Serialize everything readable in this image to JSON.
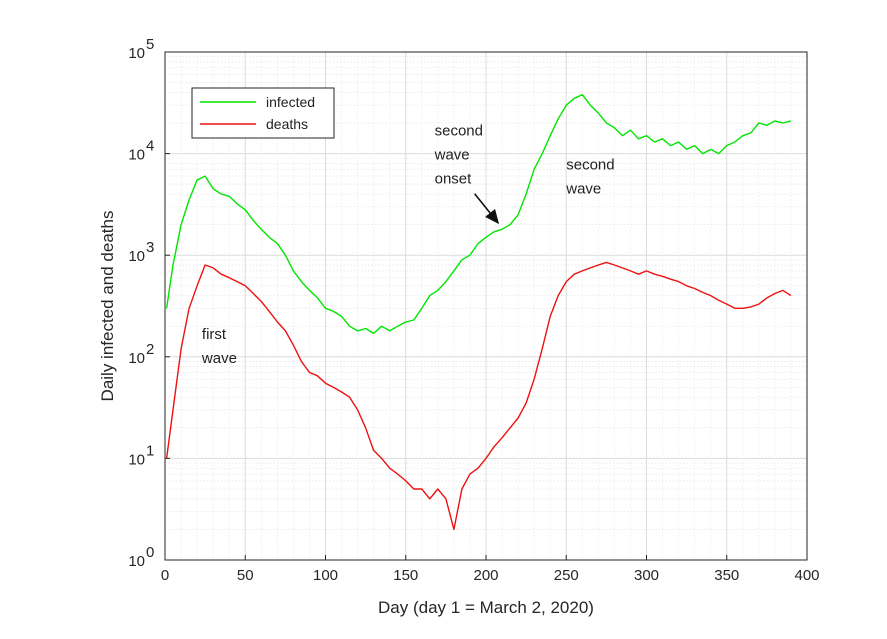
{
  "chart_data": {
    "type": "line",
    "title": "",
    "xlabel": "Day (day 1 = March 2, 2020)",
    "ylabel": "Daily infected and deaths",
    "xlim": [
      0,
      400
    ],
    "ylim": [
      1,
      100000
    ],
    "yscale": "log",
    "grid": true,
    "legend_position": "top-left",
    "x_ticks": [
      "0",
      "50",
      "100",
      "150",
      "200",
      "250",
      "300",
      "350",
      "400"
    ],
    "y_ticks": [
      {
        "base": "10",
        "exp": "0"
      },
      {
        "base": "10",
        "exp": "1"
      },
      {
        "base": "10",
        "exp": "2"
      },
      {
        "base": "10",
        "exp": "3"
      },
      {
        "base": "10",
        "exp": "4"
      },
      {
        "base": "10",
        "exp": "5"
      }
    ],
    "series": [
      {
        "name": "infected",
        "color": "#00e600",
        "x": [
          1,
          5,
          10,
          15,
          20,
          25,
          30,
          35,
          40,
          45,
          50,
          55,
          60,
          65,
          70,
          75,
          80,
          85,
          90,
          95,
          100,
          105,
          110,
          115,
          120,
          125,
          130,
          135,
          140,
          145,
          150,
          155,
          160,
          165,
          170,
          175,
          180,
          185,
          190,
          195,
          200,
          205,
          210,
          215,
          220,
          225,
          230,
          235,
          240,
          245,
          250,
          255,
          260,
          265,
          270,
          275,
          280,
          285,
          290,
          295,
          300,
          305,
          310,
          315,
          320,
          325,
          330,
          335,
          340,
          345,
          350,
          355,
          360,
          365,
          370,
          375,
          380,
          385,
          390
        ],
        "values": [
          300,
          800,
          2000,
          3500,
          5500,
          6000,
          4500,
          4000,
          3800,
          3200,
          2800,
          2200,
          1800,
          1500,
          1300,
          1000,
          700,
          550,
          450,
          380,
          300,
          280,
          250,
          200,
          180,
          190,
          170,
          200,
          180,
          200,
          220,
          230,
          300,
          400,
          450,
          550,
          700,
          900,
          1000,
          1300,
          1500,
          1700,
          1800,
          2000,
          2500,
          4000,
          7000,
          10000,
          15000,
          22000,
          30000,
          35000,
          38000,
          30000,
          25000,
          20000,
          18000,
          15000,
          17000,
          14000,
          15000,
          13000,
          14000,
          12000,
          13000,
          11000,
          12000,
          10000,
          11000,
          10000,
          12000,
          13000,
          15000,
          16000,
          20000,
          19000,
          21000,
          20000,
          21000
        ]
      },
      {
        "name": "deaths",
        "color": "#ee1111",
        "x": [
          1,
          5,
          10,
          15,
          20,
          25,
          30,
          35,
          40,
          45,
          50,
          55,
          60,
          65,
          70,
          75,
          80,
          85,
          90,
          95,
          100,
          105,
          110,
          115,
          120,
          125,
          130,
          135,
          140,
          145,
          150,
          155,
          160,
          165,
          170,
          175,
          180,
          185,
          190,
          195,
          200,
          205,
          210,
          215,
          220,
          225,
          230,
          235,
          240,
          245,
          250,
          255,
          260,
          265,
          270,
          275,
          280,
          285,
          290,
          295,
          300,
          305,
          310,
          315,
          320,
          325,
          330,
          335,
          340,
          345,
          350,
          355,
          360,
          365,
          370,
          375,
          380,
          385,
          390
        ],
        "values": [
          10,
          30,
          120,
          300,
          500,
          800,
          750,
          650,
          600,
          550,
          500,
          420,
          350,
          280,
          220,
          180,
          130,
          90,
          70,
          65,
          55,
          50,
          45,
          40,
          30,
          20,
          12,
          10,
          8,
          7,
          6,
          5,
          5,
          4,
          5,
          4,
          2,
          5,
          7,
          8,
          10,
          13,
          16,
          20,
          25,
          35,
          60,
          120,
          250,
          400,
          550,
          650,
          700,
          750,
          800,
          850,
          800,
          750,
          700,
          650,
          700,
          650,
          620,
          580,
          550,
          500,
          470,
          430,
          400,
          360,
          330,
          300,
          300,
          310,
          330,
          380,
          420,
          450,
          400
        ]
      }
    ],
    "annotations": [
      {
        "lines": [
          "first",
          "wave"
        ],
        "x": 23,
        "y": 150
      },
      {
        "lines": [
          "second",
          "wave",
          "onset"
        ],
        "x": 168,
        "y": 15000,
        "arrow_to_x": 210,
        "arrow_to_y": 1900
      },
      {
        "lines": [
          "second",
          "wave"
        ],
        "x": 250,
        "y": 7000
      }
    ]
  }
}
